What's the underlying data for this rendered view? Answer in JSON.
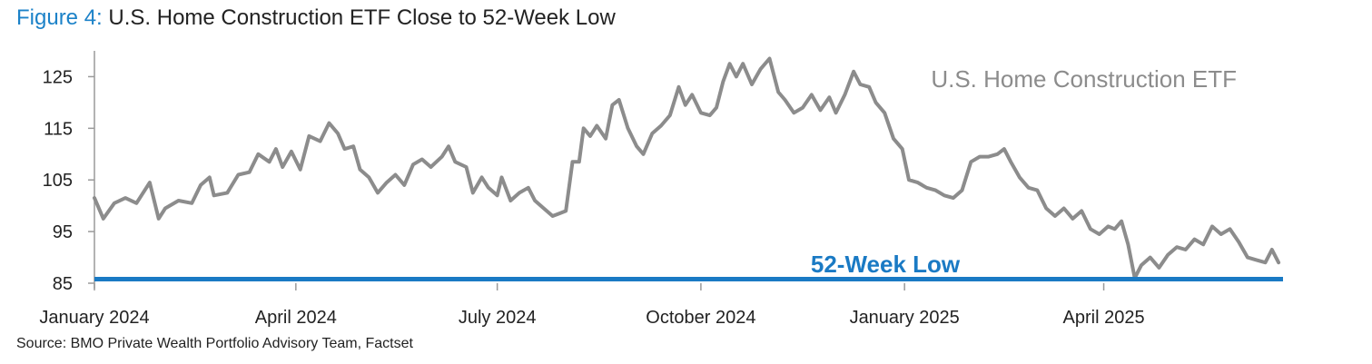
{
  "title": {
    "figure_label": "Figure 4:",
    "text": "U.S. Home Construction ETF Close to 52-Week Low"
  },
  "source": "Source: BMO Private Wealth Portfolio Advisory Team, Factset",
  "colors": {
    "figure_label": "#1c82c8",
    "series_line": "#8c8c8c",
    "low_line": "#1a7ac4",
    "axis": "#9a9a9a"
  },
  "chart_data": {
    "type": "line",
    "title": "U.S. Home Construction ETF Close to 52-Week Low",
    "xlabel": "",
    "ylabel": "",
    "ylim": [
      85,
      130
    ],
    "yticks": [
      85,
      95,
      105,
      115,
      125
    ],
    "xticks": [
      "January 2024",
      "April 2024",
      "July 2024",
      "October 2024",
      "January 2025",
      "April 2025"
    ],
    "x_range": [
      "2024-01-01",
      "2025-06-21"
    ],
    "grid": false,
    "series": [
      {
        "name": "U.S. Home Construction ETF",
        "points": [
          [
            "2024-01-01",
            101.5
          ],
          [
            "2024-01-05",
            97.5
          ],
          [
            "2024-01-10",
            100.5
          ],
          [
            "2024-01-15",
            101.5
          ],
          [
            "2024-01-20",
            100.5
          ],
          [
            "2024-01-26",
            104.5
          ],
          [
            "2024-01-30",
            97.5
          ],
          [
            "2024-02-02",
            99.5
          ],
          [
            "2024-02-08",
            101.0
          ],
          [
            "2024-02-14",
            100.5
          ],
          [
            "2024-02-18",
            104.0
          ],
          [
            "2024-02-22",
            105.5
          ],
          [
            "2024-02-24",
            102.0
          ],
          [
            "2024-03-01",
            102.5
          ],
          [
            "2024-03-06",
            106.0
          ],
          [
            "2024-03-11",
            106.5
          ],
          [
            "2024-03-15",
            110.0
          ],
          [
            "2024-03-20",
            108.5
          ],
          [
            "2024-03-23",
            111.0
          ],
          [
            "2024-03-26",
            107.5
          ],
          [
            "2024-03-30",
            110.5
          ],
          [
            "2024-04-03",
            107.0
          ],
          [
            "2024-04-07",
            113.5
          ],
          [
            "2024-04-12",
            112.5
          ],
          [
            "2024-04-16",
            116.0
          ],
          [
            "2024-04-20",
            114.0
          ],
          [
            "2024-04-23",
            111.0
          ],
          [
            "2024-04-27",
            111.5
          ],
          [
            "2024-04-30",
            107.0
          ],
          [
            "2024-05-04",
            105.5
          ],
          [
            "2024-05-08",
            102.5
          ],
          [
            "2024-05-12",
            104.5
          ],
          [
            "2024-05-16",
            106.0
          ],
          [
            "2024-05-20",
            104.0
          ],
          [
            "2024-05-24",
            108.0
          ],
          [
            "2024-05-28",
            109.0
          ],
          [
            "2024-06-01",
            107.5
          ],
          [
            "2024-06-06",
            109.5
          ],
          [
            "2024-06-09",
            111.5
          ],
          [
            "2024-06-12",
            108.5
          ],
          [
            "2024-06-17",
            107.5
          ],
          [
            "2024-06-20",
            102.5
          ],
          [
            "2024-06-24",
            105.5
          ],
          [
            "2024-06-27",
            103.5
          ],
          [
            "2024-07-01",
            102.0
          ],
          [
            "2024-07-03",
            105.5
          ],
          [
            "2024-07-07",
            101.0
          ],
          [
            "2024-07-11",
            102.5
          ],
          [
            "2024-07-15",
            103.5
          ],
          [
            "2024-07-18",
            101.0
          ],
          [
            "2024-07-22",
            99.5
          ],
          [
            "2024-07-26",
            98.0
          ],
          [
            "2024-07-29",
            98.5
          ],
          [
            "2024-08-01",
            99.0
          ],
          [
            "2024-08-04",
            108.5
          ],
          [
            "2024-08-07",
            108.5
          ],
          [
            "2024-08-09",
            115.0
          ],
          [
            "2024-08-12",
            113.5
          ],
          [
            "2024-08-15",
            115.5
          ],
          [
            "2024-08-19",
            113.0
          ],
          [
            "2024-08-22",
            119.5
          ],
          [
            "2024-08-25",
            120.5
          ],
          [
            "2024-08-29",
            115.0
          ],
          [
            "2024-09-02",
            111.5
          ],
          [
            "2024-09-05",
            110.0
          ],
          [
            "2024-09-09",
            114.0
          ],
          [
            "2024-09-13",
            115.5
          ],
          [
            "2024-09-17",
            117.5
          ],
          [
            "2024-09-21",
            123.0
          ],
          [
            "2024-09-24",
            119.5
          ],
          [
            "2024-09-27",
            121.5
          ],
          [
            "2024-10-01",
            118.0
          ],
          [
            "2024-10-05",
            117.5
          ],
          [
            "2024-10-08",
            119.0
          ],
          [
            "2024-10-11",
            124.0
          ],
          [
            "2024-10-14",
            127.5
          ],
          [
            "2024-10-17",
            125.0
          ],
          [
            "2024-10-20",
            127.5
          ],
          [
            "2024-10-24",
            123.5
          ],
          [
            "2024-10-28",
            126.5
          ],
          [
            "2024-11-01",
            128.5
          ],
          [
            "2024-11-05",
            122.0
          ],
          [
            "2024-11-08",
            120.5
          ],
          [
            "2024-11-12",
            118.0
          ],
          [
            "2024-11-16",
            119.0
          ],
          [
            "2024-11-20",
            121.5
          ],
          [
            "2024-11-24",
            118.5
          ],
          [
            "2024-11-28",
            121.0
          ],
          [
            "2024-12-01",
            118.0
          ],
          [
            "2024-12-05",
            121.5
          ],
          [
            "2024-12-09",
            126.0
          ],
          [
            "2024-12-12",
            123.5
          ],
          [
            "2024-12-16",
            123.0
          ],
          [
            "2024-12-19",
            120.0
          ],
          [
            "2024-12-23",
            118.0
          ],
          [
            "2024-12-27",
            113.0
          ],
          [
            "2024-12-31",
            111.0
          ],
          [
            "2025-01-03",
            105.0
          ],
          [
            "2025-01-07",
            104.5
          ],
          [
            "2025-01-11",
            103.5
          ],
          [
            "2025-01-15",
            103.0
          ],
          [
            "2025-01-19",
            102.0
          ],
          [
            "2025-01-23",
            101.5
          ],
          [
            "2025-01-27",
            103.0
          ],
          [
            "2025-01-31",
            108.5
          ],
          [
            "2025-02-04",
            109.5
          ],
          [
            "2025-02-08",
            109.5
          ],
          [
            "2025-02-12",
            110.0
          ],
          [
            "2025-02-15",
            111.0
          ],
          [
            "2025-02-18",
            108.5
          ],
          [
            "2025-02-22",
            105.5
          ],
          [
            "2025-02-26",
            103.5
          ],
          [
            "2025-03-02",
            103.0
          ],
          [
            "2025-03-06",
            99.5
          ],
          [
            "2025-03-10",
            98.0
          ],
          [
            "2025-03-14",
            99.5
          ],
          [
            "2025-03-18",
            97.5
          ],
          [
            "2025-03-22",
            99.0
          ],
          [
            "2025-03-26",
            95.5
          ],
          [
            "2025-03-30",
            94.5
          ],
          [
            "2025-04-03",
            96.0
          ],
          [
            "2025-04-06",
            95.5
          ],
          [
            "2025-04-09",
            97.0
          ],
          [
            "2025-04-12",
            92.5
          ],
          [
            "2025-04-15",
            86.0
          ],
          [
            "2025-04-18",
            88.5
          ],
          [
            "2025-04-22",
            90.0
          ],
          [
            "2025-04-26",
            88.0
          ],
          [
            "2025-04-30",
            90.5
          ],
          [
            "2025-05-04",
            92.0
          ],
          [
            "2025-05-08",
            91.5
          ],
          [
            "2025-05-12",
            93.5
          ],
          [
            "2025-05-16",
            92.5
          ],
          [
            "2025-05-20",
            96.0
          ],
          [
            "2025-05-24",
            94.5
          ],
          [
            "2025-05-28",
            95.5
          ],
          [
            "2025-06-01",
            93.0
          ],
          [
            "2025-06-05",
            90.0
          ],
          [
            "2025-06-09",
            89.5
          ],
          [
            "2025-06-13",
            89.0
          ],
          [
            "2025-06-16",
            91.5
          ],
          [
            "2025-06-19",
            89.0
          ]
        ]
      },
      {
        "name": "52-Week Low",
        "points": [
          [
            "2024-01-01",
            85.8
          ],
          [
            "2025-06-21",
            85.8
          ]
        ]
      }
    ],
    "annotations": [
      {
        "text": "U.S. Home Construction ETF",
        "target": "series-1",
        "placement": "top-right"
      },
      {
        "text": "52-Week Low",
        "target": "series-2",
        "placement": "above-line-right"
      }
    ]
  }
}
